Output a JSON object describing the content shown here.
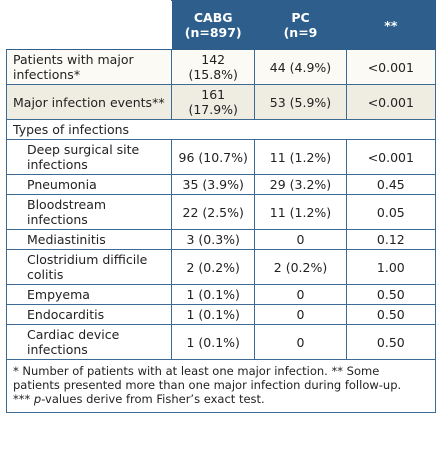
{
  "header": {
    "cabg": [
      "CABG",
      "(n=897)"
    ],
    "pci": [
      "PC",
      "(n=9"
    ],
    "p": "**"
  },
  "rows": [
    {
      "label": "Patients with major infections*",
      "cabg": "142 (15.8%)",
      "pci": "44 (4.9%)",
      "p": "<0.001"
    },
    {
      "label": "Major infection events**",
      "cabg": "161 (17.9%)",
      "pci": "53 (5.9%)",
      "p": "<0.001"
    }
  ],
  "section": "Types of infections",
  "subrows": [
    {
      "label": "Deep surgical site infections",
      "cabg": "96 (10.7%)",
      "pci": "11 (1.2%)",
      "p": "<0.001"
    },
    {
      "label": "Pneumonia",
      "cabg": "35 (3.9%)",
      "pci": "29 (3.2%)",
      "p": "0.45"
    },
    {
      "label": "Bloodstream infections",
      "cabg": "22 (2.5%)",
      "pci": "11 (1.2%)",
      "p": "0.05"
    },
    {
      "label": "Mediastinitis",
      "cabg": "3 (0.3%)",
      "pci": "0",
      "p": "0.12"
    },
    {
      "label": "Clostridium difficile colitis",
      "cabg": "2 (0.2%)",
      "pci": "2 (0.2%)",
      "p": "1.00"
    },
    {
      "label": "Empyema",
      "cabg": "1 (0.1%)",
      "pci": "0",
      "p": "0.50"
    },
    {
      "label": "Endocarditis",
      "cabg": "1 (0.1%)",
      "pci": "0",
      "p": "0.50"
    },
    {
      "label": "Cardiac device infections",
      "cabg": "1 (0.1%)",
      "pci": "0",
      "p": "0.50"
    }
  ],
  "footnote": [
    "* Number of patients with at least one major infection. ** Some patients presented more than one major infection during follow-up.",
    "*** ",
    "p",
    "-values derive from Fisher’s exact test."
  ]
}
